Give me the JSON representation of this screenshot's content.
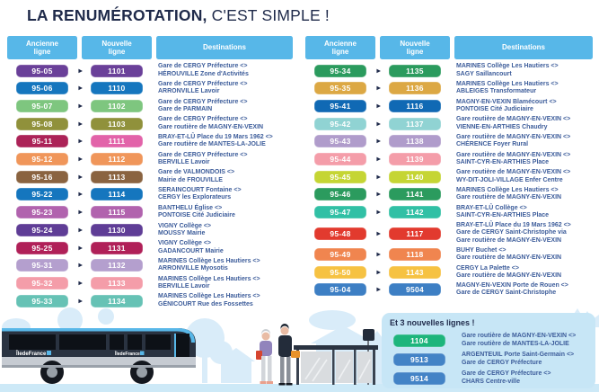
{
  "title": {
    "bold": "LA RENUMÉROTATION,",
    "regular": " C'EST SIMPLE !"
  },
  "headers": {
    "ancienne_line1": "Ancienne",
    "ancienne_line2": "ligne",
    "nouvelle_line1": "Nouvelle",
    "nouvelle_line2": "ligne",
    "destinations": "Destinations"
  },
  "icons": {
    "arrow": "▶"
  },
  "colors": {
    "header_blue": "#57B7E8",
    "navy": "#1F2A4A",
    "dest_text": "#3C5C9A",
    "newlines_box": "#C7E6F6",
    "ground": "#CDE9F7",
    "silhouette": "#D9ECF9"
  },
  "left_table": {
    "rows": [
      {
        "old": "95-05",
        "new": "1101",
        "old_color": "#6A4099",
        "new_color": "#6A4099",
        "dest": [
          "Gare de CERGY Préfecture <>",
          "HÉROUVILLE Zone d'Activités"
        ]
      },
      {
        "old": "95-06",
        "new": "1110",
        "old_color": "#1576BE",
        "new_color": "#1576BE",
        "dest": [
          "Gare de CERGY Préfecture <>",
          "ARRONVILLE Lavoir"
        ]
      },
      {
        "old": "95-07",
        "new": "1102",
        "old_color": "#7EC67F",
        "new_color": "#7EC67F",
        "dest": [
          "Gare de CERGY Préfecture <>",
          "Gare de PARMAIN"
        ]
      },
      {
        "old": "95-08",
        "new": "1103",
        "old_color": "#90913B",
        "new_color": "#90913B",
        "dest": [
          "Gare de CERGY Préfecture <>",
          "Gare routière de MAGNY-EN-VEXIN"
        ]
      },
      {
        "old": "95-11",
        "new": "1111",
        "old_color": "#AC2358",
        "new_color": "#E263A9",
        "dest": [
          "BRAY-ET-LÛ Place du 19 Mars 1962 <>",
          "Gare routière de MANTES-LA-JOLIE"
        ]
      },
      {
        "old": "95-12",
        "new": "1112",
        "old_color": "#F0965A",
        "new_color": "#F0965A",
        "dest": [
          "Gare de CERGY Préfecture <>",
          "BERVILLE Lavoir"
        ]
      },
      {
        "old": "95-16",
        "new": "1113",
        "old_color": "#8A6340",
        "new_color": "#8A6340",
        "dest": [
          "Gare de VALMONDOIS <>",
          "Mairie de FROUVILLE"
        ]
      },
      {
        "old": "95-22",
        "new": "1114",
        "old_color": "#1576BE",
        "new_color": "#1576BE",
        "dest": [
          "SERAINCOURT Fontaine <>",
          "CERGY les Explorateurs"
        ]
      },
      {
        "old": "95-23",
        "new": "1115",
        "old_color": "#B163AE",
        "new_color": "#B163AE",
        "dest": [
          "BANTHELU Église <>",
          "PONTOISE Cité Judiciaire"
        ]
      },
      {
        "old": "95-24",
        "new": "1130",
        "old_color": "#5F3D96",
        "new_color": "#5F3D96",
        "dest": [
          "VIGNY Collège <>",
          "MOUSSY Mairie"
        ]
      },
      {
        "old": "95-25",
        "new": "1131",
        "old_color": "#B02058",
        "new_color": "#B02058",
        "dest": [
          "VIGNY Collège <>",
          "GADANCOURT Mairie"
        ]
      },
      {
        "old": "95-31",
        "new": "1132",
        "old_color": "#B49FCE",
        "new_color": "#B49FCE",
        "dest": [
          "MARINES Collège Les Hautiers <>",
          "ARRONVILLE Myosotis"
        ]
      },
      {
        "old": "95-32",
        "new": "1133",
        "old_color": "#F49DA9",
        "new_color": "#F49DA9",
        "dest": [
          "MARINES Collège Les Hautiers <>",
          "BERVILLE Lavoir"
        ]
      },
      {
        "old": "95-33",
        "new": "1134",
        "old_color": "#66C2B5",
        "new_color": "#66C2B5",
        "dest": [
          "MARINES Collège Les Hautiers <>",
          "GÉNICOURT Rue des Fossettes"
        ]
      }
    ]
  },
  "right_table": {
    "rows": [
      {
        "old": "95-34",
        "new": "1135",
        "old_color": "#2B9B5E",
        "new_color": "#2B9B5E",
        "dest": [
          "MARINES Collège Les Hautiers <>",
          "SAGY Saillancourt"
        ]
      },
      {
        "old": "95-35",
        "new": "1136",
        "old_color": "#DCA844",
        "new_color": "#DCA844",
        "dest": [
          "MARINES Collège Les Hautiers <>",
          "ABLEIGES Transformateur"
        ]
      },
      {
        "old": "95-41",
        "new": "1116",
        "old_color": "#1069B4",
        "new_color": "#1069B4",
        "dest": [
          "MAGNY-EN-VEXIN Blamécourt <>",
          "PONTOISE Cité Judiciaire"
        ]
      },
      {
        "old": "95-42",
        "new": "1137",
        "old_color": "#90D3D3",
        "new_color": "#90D3D3",
        "dest": [
          "Gare routière de MAGNY-EN-VEXIN <>",
          "VIENNE-EN-ARTHIES Chaudry"
        ]
      },
      {
        "old": "95-43",
        "new": "1138",
        "old_color": "#B09CCB",
        "new_color": "#B09CCB",
        "dest": [
          "Gare routière de MAGNY-EN-VEXIN <>",
          "CHÉRENCE Foyer Rural"
        ]
      },
      {
        "old": "95-44",
        "new": "1139",
        "old_color": "#F49DA9",
        "new_color": "#F49DA9",
        "dest": [
          "Gare routière de MAGNY-EN-VEXIN <>",
          "SAINT-CYR-EN-ARTHIES Place"
        ]
      },
      {
        "old": "95-45",
        "new": "1140",
        "old_color": "#C5D534",
        "new_color": "#C5D534",
        "dest": [
          "Gare routière de MAGNY-EN-VEXIN <>",
          "WY-DIT-JOLI-VILLAGE Enfer Centre"
        ]
      },
      {
        "old": "95-46",
        "new": "1141",
        "old_color": "#2B9B5E",
        "new_color": "#2B9B5E",
        "dest": [
          "MARINES Collège Les Hautiers <>",
          "Gare routière de MAGNY-EN-VEXIN"
        ]
      },
      {
        "old": "95-47",
        "new": "1142",
        "old_color": "#31C0A5",
        "new_color": "#31C0A5",
        "dest": [
          "BRAY-ET-LÛ Collège <>",
          "SAINT-CYR-EN-ARTHIES Place"
        ]
      },
      {
        "old": "95-48",
        "new": "1117",
        "old_color": "#E23A2E",
        "new_color": "#E23A2E",
        "dest": [
          "BRAY-ET-LÛ Place du 19 Mars 1962 <>",
          "Gare de CERGY Saint-Christophe via",
          "Gare routière de MAGNY-EN-VEXIN"
        ]
      },
      {
        "old": "95-49",
        "new": "1118",
        "old_color": "#F0854F",
        "new_color": "#F0854F",
        "dest": [
          "BUHY Buchet <>",
          "Gare routière de MAGNY-EN-VEXIN"
        ]
      },
      {
        "old": "95-50",
        "new": "1143",
        "old_color": "#F6C242",
        "new_color": "#F6C242",
        "dest": [
          "CERGY La Palette <>",
          "Gare routière de MAGNY-EN-VEXIN"
        ]
      },
      {
        "old": "95-04",
        "new": "9504",
        "old_color": "#3D7FC4",
        "new_color": "#3D7FC4",
        "dest": [
          "MAGNY-EN-VEXIN Porte de Rouen <>",
          "Gare de CERGY Saint-Christophe"
        ]
      }
    ]
  },
  "new_lines": {
    "title": "Et 3 nouvelles lignes !",
    "rows": [
      {
        "num": "1104",
        "color": "#1DB57C",
        "dest": [
          "Gare routière de MAGNY-EN-VEXIN <>",
          "Gare routière de MANTES-LA-JOLIE"
        ]
      },
      {
        "num": "9513",
        "color": "#4383C6",
        "dest": [
          "ARGENTEUIL Porte Saint-Germain <>",
          "Gare de CERGY Préfecture"
        ]
      },
      {
        "num": "9514",
        "color": "#4383C6",
        "dest": [
          "Gare de CERGY Préfecture <>",
          "CHARS Centre-ville"
        ]
      }
    ]
  },
  "illustration": {
    "bus_brand": "ÎledeFrance"
  }
}
